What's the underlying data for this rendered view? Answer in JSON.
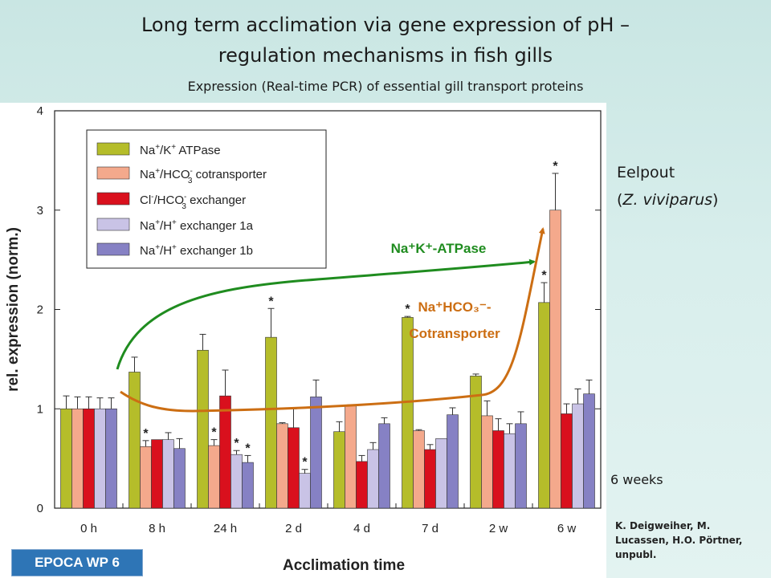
{
  "slide": {
    "title_line1": "Long term acclimation via gene expression of pH –",
    "title_line2": "regulation mechanisms in fish gills",
    "subtitle": "Expression (Real-time PCR) of essential gill transport proteins",
    "species_name": "Eelpout",
    "species_latin": "Z. viviparus",
    "duration": "6 weeks",
    "credit": "K. Deigweiher, M. Lucassen, H.O. Pörtner, unpubl.",
    "badge": "EPOCA WP 6"
  },
  "chart_data": {
    "type": "bar",
    "xlabel": "Acclimation time",
    "ylabel": "rel. expression (norm.)",
    "ylim": [
      0,
      4
    ],
    "yticks": [
      "0",
      "1",
      "2",
      "3",
      "4"
    ],
    "grid": false,
    "legend_position": "top-left",
    "categories": [
      "0 h",
      "8 h",
      "24 h",
      "2 d",
      "4 d",
      "7 d",
      "2 w",
      "6 w"
    ],
    "series": [
      {
        "name": "Na+/K+ ATPase",
        "legend": {
          "t1": "Na",
          "s1": "+",
          "t2": "/K",
          "s2": "+",
          "t3": " ATPase"
        },
        "color": "#b5bd2a",
        "values": [
          1.0,
          1.37,
          1.59,
          1.72,
          0.77,
          1.92,
          1.33,
          2.07
        ],
        "errors": [
          0.13,
          0.15,
          0.16,
          0.29,
          0.1,
          0.01,
          0.02,
          0.2
        ],
        "stars": [
          false,
          false,
          false,
          true,
          false,
          true,
          false,
          true
        ]
      },
      {
        "name": "Na+/HCO3- cotransporter",
        "legend": {
          "t1": "Na",
          "s1": "+",
          "t2": "/HCO",
          "s2": "-",
          "b2": "3",
          "t3": " cotransporter"
        },
        "color": "#f4a98c",
        "values": [
          1.0,
          0.62,
          0.63,
          0.85,
          1.03,
          0.78,
          0.93,
          3.0
        ],
        "errors": [
          0.12,
          0.06,
          0.06,
          0.01,
          0.01,
          0.01,
          0.15,
          0.37
        ],
        "stars": [
          false,
          true,
          true,
          false,
          false,
          false,
          false,
          true
        ]
      },
      {
        "name": "Cl-/HCO3- exchanger",
        "legend": {
          "t1": "Cl",
          "s1": "-",
          "t2": "/HCO",
          "s2": "-",
          "b2": "3",
          "t3": " exchanger"
        },
        "color": "#d9101d",
        "values": [
          1.0,
          0.69,
          1.13,
          0.81,
          0.47,
          0.59,
          0.78,
          0.95
        ],
        "errors": [
          0.12,
          0.0,
          0.26,
          0.19,
          0.06,
          0.05,
          0.12,
          0.1
        ],
        "stars": [
          false,
          false,
          false,
          false,
          false,
          false,
          false,
          false
        ]
      },
      {
        "name": "Na+/H+ exchanger 1a",
        "legend": {
          "t1": "Na",
          "s1": "+",
          "t2": "/H",
          "s2": "+",
          "t3": " exchanger 1a"
        },
        "color": "#c9c3e6",
        "values": [
          1.0,
          0.69,
          0.54,
          0.35,
          0.59,
          0.7,
          0.75,
          1.05
        ],
        "errors": [
          0.11,
          0.07,
          0.04,
          0.04,
          0.07,
          0.0,
          0.1,
          0.15
        ],
        "stars": [
          false,
          false,
          true,
          true,
          false,
          false,
          false,
          false
        ]
      },
      {
        "name": "Na+/H+ exchanger 1b",
        "legend": {
          "t1": "Na",
          "s1": "+",
          "t2": "/H",
          "s2": "+",
          "t3": " exchanger 1b"
        },
        "color": "#8681c4",
        "values": [
          1.0,
          0.6,
          0.46,
          1.12,
          0.85,
          0.94,
          0.85,
          1.15
        ],
        "errors": [
          0.11,
          0.1,
          0.07,
          0.17,
          0.06,
          0.07,
          0.12,
          0.14
        ],
        "stars": [
          false,
          false,
          true,
          false,
          false,
          false,
          false,
          false
        ]
      }
    ],
    "annotations": [
      {
        "text": "Na⁺K⁺-ATPase",
        "color": "#1f8c1f"
      },
      {
        "text_line1": "Na⁺HCO₃⁻-",
        "text_line2": "Cotransporter",
        "color": "#cc6e13"
      }
    ]
  }
}
